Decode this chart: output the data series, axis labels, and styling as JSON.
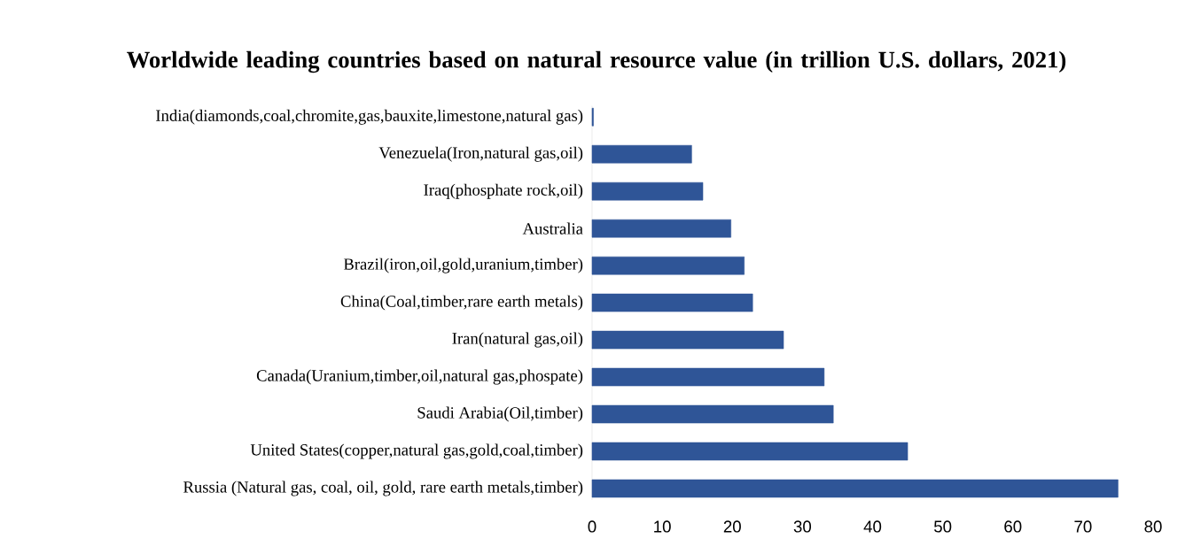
{
  "chart_data": {
    "type": "bar",
    "orientation": "horizontal",
    "title": "Worldwide leading countries based on natural resource value (in trillion U.S. dollars, 2021)",
    "categories": [
      "India(diamonds,coal,chromite,gas,bauxite,limestone,natural gas)",
      "Venezuela(Iron,natural gas,oil)",
      "Iraq(phosphate rock,oil)",
      "Australia",
      "Brazil(iron,oil,gold,uranium,timber)",
      "China(Coal,timber,rare earth metals)",
      "Iran(natural gas,oil)",
      "Canada(Uranium,timber,oil,natural gas,phospate)",
      "Saudi Arabia(Oil,timber)",
      "United States(copper,natural gas,gold,coal,timber)",
      "Russia (Natural gas, coal, oil, gold, rare earth metals,timber)"
    ],
    "values": [
      0.2,
      14.2,
      15.8,
      19.8,
      21.7,
      22.9,
      27.3,
      33.1,
      34.4,
      45,
      75
    ],
    "color": "#2f5597",
    "xlim": [
      0,
      80
    ],
    "xticks": [
      0,
      10,
      20,
      30,
      40,
      50,
      60,
      70,
      80
    ]
  }
}
